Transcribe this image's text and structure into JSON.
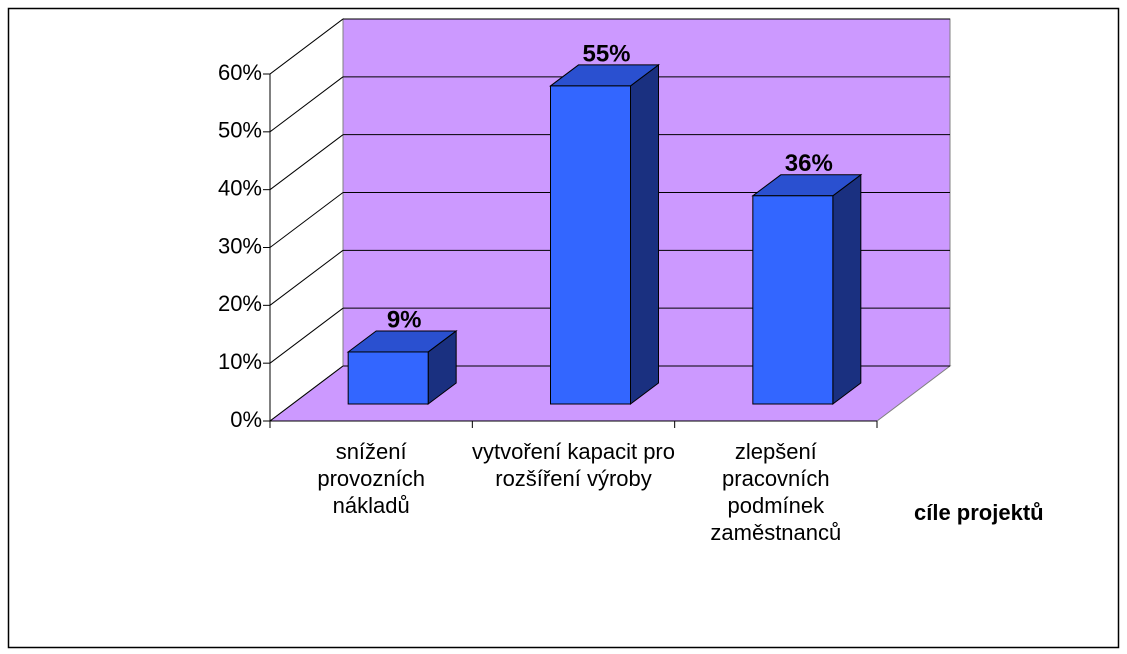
{
  "chart_data": {
    "type": "bar3d",
    "categories": [
      "snížení provozních nákladů",
      "vytvoření kapacit pro rozšíření výroby",
      "zlepšení pracovních podmínek zaměstnanců"
    ],
    "values": [
      9,
      55,
      36
    ],
    "value_labels": [
      "9%",
      "55%",
      "36%"
    ],
    "x_label": "cíle projektů",
    "color": "#3366ff",
    "wall_color": "#cc99ff",
    "ylim": [
      0,
      60
    ],
    "yticks": [
      {
        "value": 0,
        "label": "0%"
      },
      {
        "value": 10,
        "label": "10%"
      },
      {
        "value": 20,
        "label": "20%"
      },
      {
        "value": 30,
        "label": "30%"
      },
      {
        "value": 40,
        "label": "40%"
      },
      {
        "value": 50,
        "label": "50%"
      },
      {
        "value": 60,
        "label": "60%"
      }
    ],
    "grid": true
  }
}
